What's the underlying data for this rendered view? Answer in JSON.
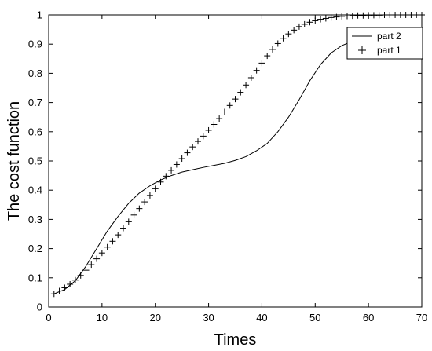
{
  "chart_data": {
    "type": "line",
    "xlabel": "Times",
    "ylabel": "The cost function",
    "xlim": [
      0,
      70
    ],
    "ylim": [
      0,
      1
    ],
    "xticks": [
      0,
      10,
      20,
      30,
      40,
      50,
      60,
      70
    ],
    "yticks": [
      0,
      0.1,
      0.2,
      0.3,
      0.4,
      0.5,
      0.6,
      0.7,
      0.8,
      0.9,
      1
    ],
    "xtick_labels": [
      "0",
      "10",
      "20",
      "30",
      "40",
      "50",
      "60",
      "70"
    ],
    "ytick_labels": [
      "0",
      "0.1",
      "0.2",
      "0.3",
      "0.4",
      "0.5",
      "0.6",
      "0.7",
      "0.8",
      "0.9",
      "1"
    ],
    "grid": false,
    "legend_position": "top-right",
    "series": [
      {
        "name": "part 2",
        "style": "line",
        "color": "#000000",
        "x": [
          1,
          3,
          5,
          7,
          9,
          11,
          13,
          15,
          17,
          19,
          21,
          23,
          25,
          27,
          29,
          31,
          33,
          35,
          37,
          39,
          41,
          43,
          45,
          47,
          49,
          51,
          53,
          55,
          57,
          59,
          61,
          63,
          65,
          67,
          69,
          70
        ],
        "y": [
          0.045,
          0.06,
          0.09,
          0.14,
          0.2,
          0.26,
          0.31,
          0.355,
          0.39,
          0.415,
          0.435,
          0.45,
          0.462,
          0.47,
          0.478,
          0.485,
          0.492,
          0.502,
          0.515,
          0.535,
          0.56,
          0.6,
          0.65,
          0.71,
          0.775,
          0.83,
          0.87,
          0.895,
          0.91,
          0.915,
          0.918,
          0.92,
          0.92,
          0.92,
          0.92,
          0.92
        ]
      },
      {
        "name": "part 1",
        "style": "marker-plus",
        "color": "#000000",
        "x": [
          1,
          2,
          3,
          4,
          5,
          6,
          7,
          8,
          9,
          10,
          11,
          12,
          13,
          14,
          15,
          16,
          17,
          18,
          19,
          20,
          21,
          22,
          23,
          24,
          25,
          26,
          27,
          28,
          29,
          30,
          31,
          32,
          33,
          34,
          35,
          36,
          37,
          38,
          39,
          40,
          41,
          42,
          43,
          44,
          45,
          46,
          47,
          48,
          49,
          50,
          51,
          52,
          53,
          54,
          55,
          56,
          57,
          58,
          59,
          60,
          61,
          62,
          63,
          64,
          65,
          66,
          67,
          68,
          69,
          70
        ],
        "y": [
          0.045,
          0.055,
          0.066,
          0.078,
          0.092,
          0.108,
          0.126,
          0.145,
          0.165,
          0.185,
          0.205,
          0.225,
          0.247,
          0.27,
          0.292,
          0.315,
          0.337,
          0.36,
          0.382,
          0.405,
          0.428,
          0.448,
          0.468,
          0.488,
          0.508,
          0.528,
          0.548,
          0.567,
          0.585,
          0.605,
          0.625,
          0.645,
          0.668,
          0.69,
          0.712,
          0.735,
          0.76,
          0.785,
          0.81,
          0.835,
          0.86,
          0.882,
          0.902,
          0.92,
          0.935,
          0.948,
          0.96,
          0.968,
          0.975,
          0.98,
          0.985,
          0.988,
          0.991,
          0.993,
          0.995,
          0.996,
          0.997,
          0.998,
          0.998,
          0.999,
          0.999,
          0.999,
          1.0,
          1.0,
          1.0,
          1.0,
          1.0,
          1.0,
          1.0,
          1.0
        ]
      }
    ]
  }
}
